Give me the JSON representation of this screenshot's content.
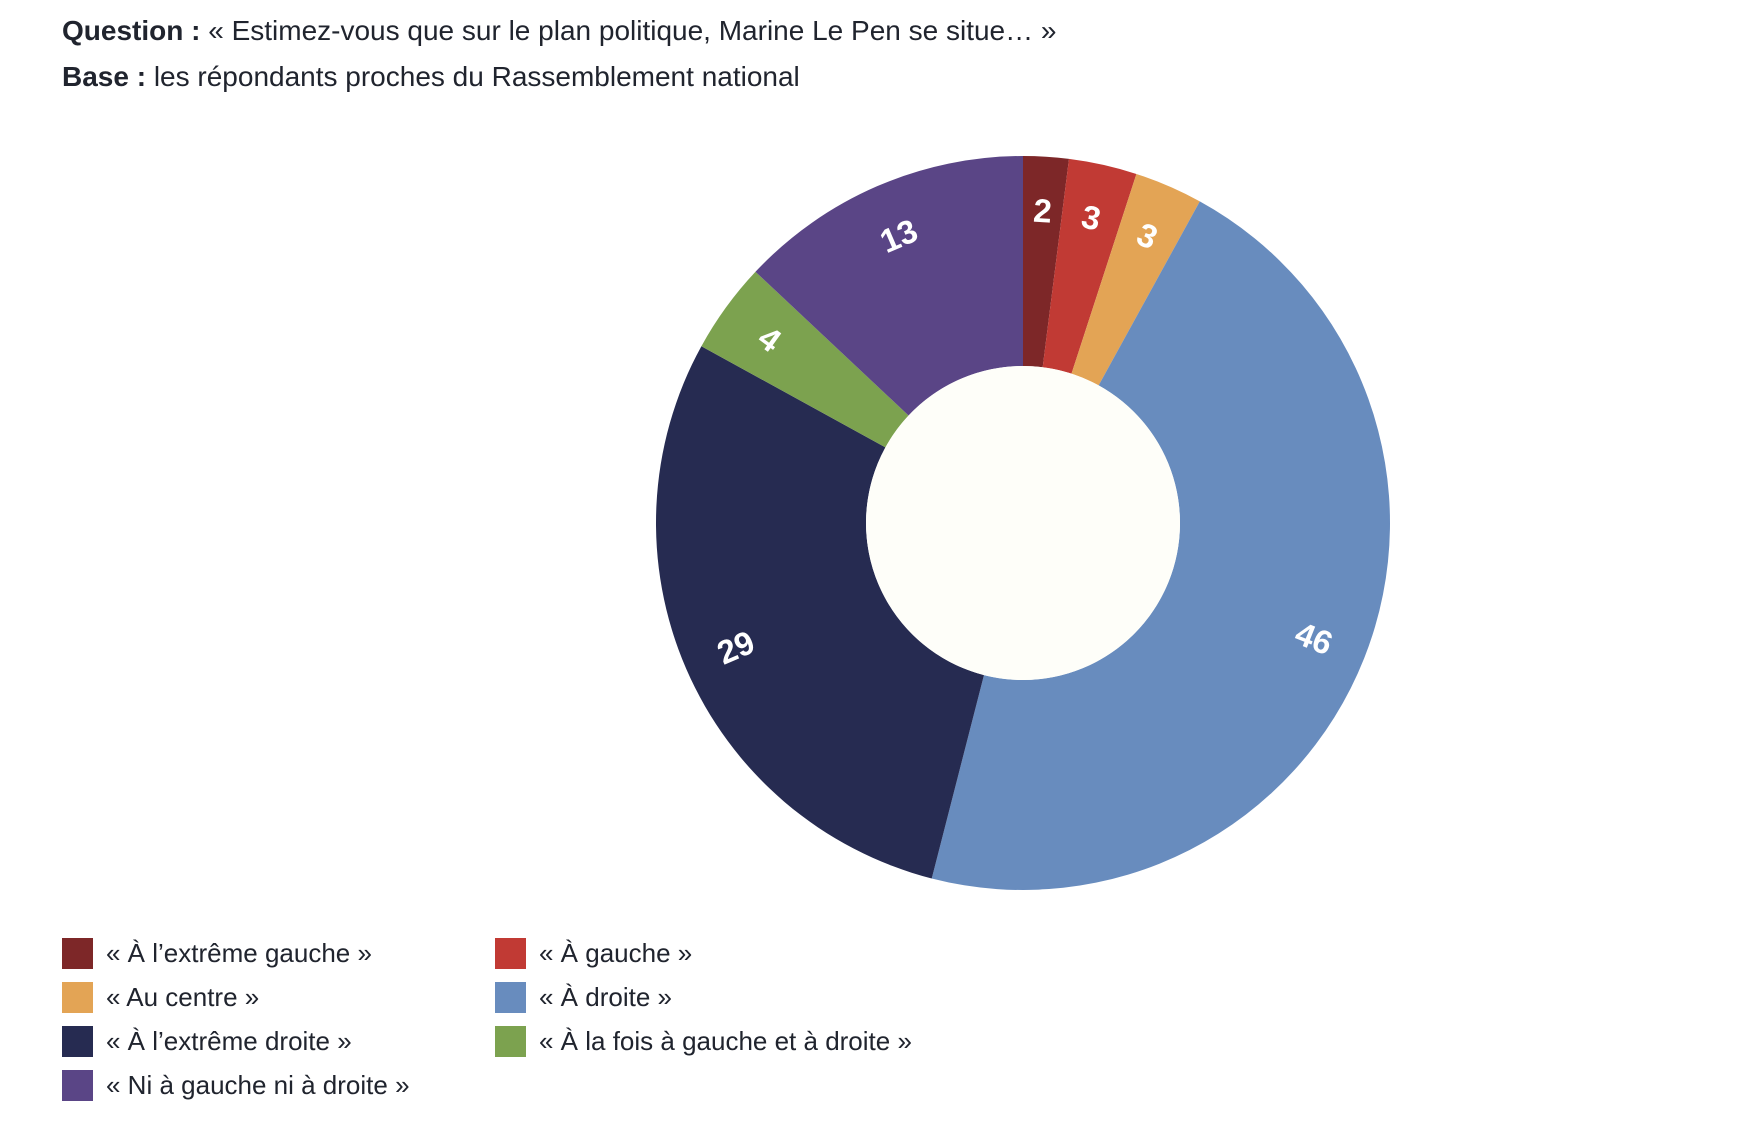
{
  "header": {
    "question_label": "Question :",
    "question_text": "« Estimez-vous que sur le plan politique, Marine Le Pen se situe… »",
    "base_label": "Base :",
    "base_text": "les répondants proches du Rassemblement national"
  },
  "chart_data": {
    "type": "pie",
    "subtype": "donut",
    "unit": "percent",
    "direction": "clockwise",
    "start_angle_deg": 0,
    "legend_position": "bottom-left",
    "categories": [
      "« À l’extrême gauche »",
      "« À gauche »",
      "« Au centre »",
      "« À droite »",
      "« À l’extrême droite »",
      "« À la fois à gauche et à droite »",
      "« Ni à gauche ni à droite »"
    ],
    "values": [
      2,
      3,
      3,
      46,
      29,
      4,
      13
    ],
    "colors": [
      "#7d2728",
      "#c13a34",
      "#e3a455",
      "#688cbe",
      "#262b51",
      "#7ca24f",
      "#5a4586"
    ],
    "label_color": "#ffffff",
    "hole_color": "#fefef9"
  }
}
